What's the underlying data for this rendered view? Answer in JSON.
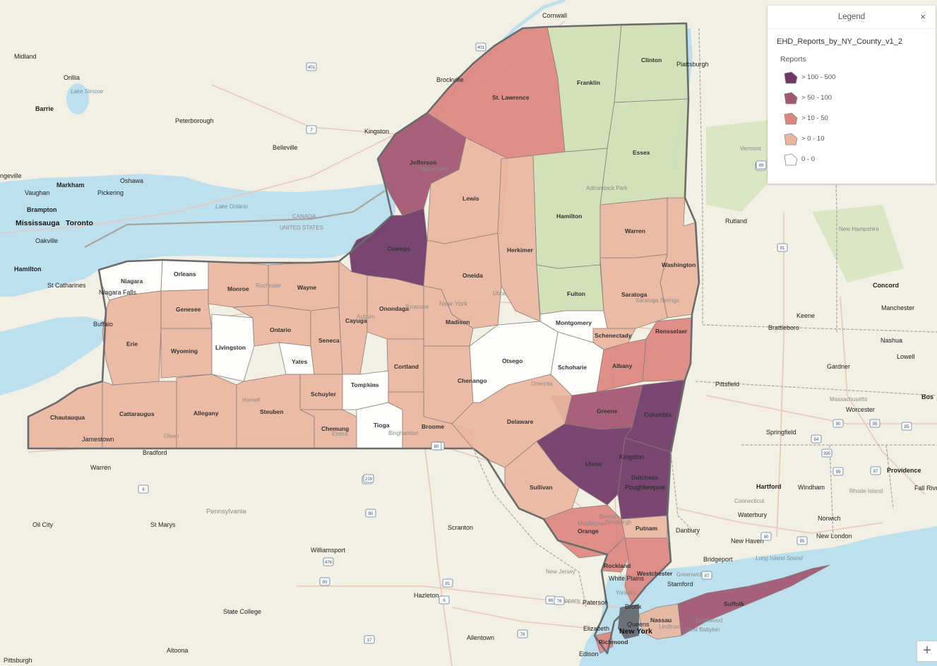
{
  "legend": {
    "title": "Legend",
    "close_glyph": "×",
    "layer_name": "EHD_Reports_by_NY_County_v1_2",
    "field_name": "Reports",
    "classes": [
      {
        "label": "> 100 - 500",
        "color": "#6e3766"
      },
      {
        "label": "> 50 - 100",
        "color": "#a35572"
      },
      {
        "label": "> 10 - 50",
        "color": "#dd8580"
      },
      {
        "label": "> 0 - 10",
        "color": "#eab6a0"
      },
      {
        "label": "0 - 0",
        "color": "#ffffff"
      }
    ]
  },
  "zoom": {
    "zoom_in_glyph": "+"
  },
  "map": {
    "water_color": "#bde0ef",
    "land_color": "#f2f0e4",
    "forest_color": "#cfe0b4",
    "water_labels": {
      "lake_ontario": "Lake Ontario",
      "lake_simcoe": "Lake Simcoe",
      "long_island_sound": "Long Island Sound"
    },
    "boundary_labels": {
      "canada": "CANADA",
      "united_states": "UNITED STATES"
    },
    "state_labels": {
      "pennsylvania": "Pennsylvania",
      "new_jersey": "New Jersey",
      "connecticut": "Connecticut",
      "massachusetts": "Massachusetts",
      "vermont": "Vermont",
      "new_hampshire": "New Hampshire",
      "rhode_island": "Rhode Island",
      "new_york": "New York"
    },
    "counties": [
      {
        "name": "St. Lawrence",
        "fill": "#dd8580"
      },
      {
        "name": "Jefferson",
        "fill": "#a35572"
      },
      {
        "name": "Franklin",
        "fill": "#cfe0b4"
      },
      {
        "name": "Clinton",
        "fill": "#cfe0b4"
      },
      {
        "name": "Essex",
        "fill": "#cfe0b4"
      },
      {
        "name": "Hamilton",
        "fill": "#cfe0b4"
      },
      {
        "name": "Lewis",
        "fill": "#eab6a0"
      },
      {
        "name": "Herkimer",
        "fill": "#eab6a0"
      },
      {
        "name": "Oswego",
        "fill": "#6e3766"
      },
      {
        "name": "Oneida",
        "fill": "#eab6a0"
      },
      {
        "name": "Warren",
        "fill": "#eab6a0"
      },
      {
        "name": "Washington",
        "fill": "#eab6a0"
      },
      {
        "name": "Saratoga",
        "fill": "#eab6a0"
      },
      {
        "name": "Fulton",
        "fill": "#cfe0b4"
      },
      {
        "name": "Niagara",
        "fill": "#ffffff"
      },
      {
        "name": "Orleans",
        "fill": "#ffffff"
      },
      {
        "name": "Monroe",
        "fill": "#eab6a0"
      },
      {
        "name": "Wayne",
        "fill": "#eab6a0"
      },
      {
        "name": "Genesee",
        "fill": "#eab6a0"
      },
      {
        "name": "Erie",
        "fill": "#eab6a0"
      },
      {
        "name": "Wyoming",
        "fill": "#eab6a0"
      },
      {
        "name": "Livingston",
        "fill": "#ffffff"
      },
      {
        "name": "Ontario",
        "fill": "#eab6a0"
      },
      {
        "name": "Yates",
        "fill": "#ffffff"
      },
      {
        "name": "Seneca",
        "fill": "#eab6a0"
      },
      {
        "name": "Cayuga",
        "fill": "#eab6a0"
      },
      {
        "name": "Onondaga",
        "fill": "#eab6a0"
      },
      {
        "name": "Madison",
        "fill": "#eab6a0"
      },
      {
        "name": "Cortland",
        "fill": "#eab6a0"
      },
      {
        "name": "Chenango",
        "fill": "#eab6a0"
      },
      {
        "name": "Otsego",
        "fill": "#ffffff"
      },
      {
        "name": "Montgomery",
        "fill": "#ffffff"
      },
      {
        "name": "Schenectady",
        "fill": "#eab6a0"
      },
      {
        "name": "Schoharie",
        "fill": "#ffffff"
      },
      {
        "name": "Albany",
        "fill": "#dd8580"
      },
      {
        "name": "Rensselaer",
        "fill": "#dd8580"
      },
      {
        "name": "Greene",
        "fill": "#a35572"
      },
      {
        "name": "Columbia",
        "fill": "#6e3766"
      },
      {
        "name": "Chautauqua",
        "fill": "#eab6a0"
      },
      {
        "name": "Cattaraugus",
        "fill": "#eab6a0"
      },
      {
        "name": "Allegany",
        "fill": "#eab6a0"
      },
      {
        "name": "Steuben",
        "fill": "#eab6a0"
      },
      {
        "name": "Schuyler",
        "fill": "#eab6a0"
      },
      {
        "name": "Chemung",
        "fill": "#eab6a0"
      },
      {
        "name": "Tompkins",
        "fill": "#ffffff"
      },
      {
        "name": "Tioga",
        "fill": "#ffffff"
      },
      {
        "name": "Broome",
        "fill": "#eab6a0"
      },
      {
        "name": "Delaware",
        "fill": "#eab6a0"
      },
      {
        "name": "Ulster",
        "fill": "#6e3766"
      },
      {
        "name": "Dutchess",
        "fill": "#6e3766"
      },
      {
        "name": "Sullivan",
        "fill": "#eab6a0"
      },
      {
        "name": "Orange",
        "fill": "#dd8580"
      },
      {
        "name": "Putnam",
        "fill": "#eab6a0"
      },
      {
        "name": "Rockland",
        "fill": "#dd8580"
      },
      {
        "name": "Westchester",
        "fill": "#dd8580"
      },
      {
        "name": "Nassau",
        "fill": "#eab6a0"
      },
      {
        "name": "Suffolk",
        "fill": "#a35572"
      },
      {
        "name": "Richmond",
        "fill": "#dd8580"
      }
    ],
    "places": {
      "cornwall": "Cornwall",
      "midland": "Midland",
      "orillia": "Orillia",
      "barrie": "Barrie",
      "peterborough": "Peterborough",
      "kingston": "Kingston",
      "belleville": "Belleville",
      "brockville": "Brockville",
      "plattsburgh": "Plattsburgh",
      "ngeville": "ngeville",
      "markham": "Markham",
      "vaughan": "Vaughan",
      "oshawa": "Oshawa",
      "pickering": "Pickering",
      "brampton": "Brampton",
      "mississauga": "Mississauga",
      "toronto": "Toronto",
      "oakville": "Oakville",
      "hamilton_on": "Hamilton",
      "st_catharines": "St Catharines",
      "niagara_falls": "Niagara Falls",
      "buffalo": "Buffalo",
      "watertown": "Watertown",
      "rochester": "Rochester",
      "syracuse": "Syracuse",
      "utica": "Utica",
      "auburn": "Auburn",
      "rutland": "Rutland",
      "keene": "Keene",
      "concord": "Concord",
      "manchester": "Manchester",
      "brattleboro": "Brattleboro",
      "nashua": "Nashua",
      "lowell": "Lowell",
      "gardner": "Gardner",
      "pittsfield": "Pittsfield",
      "worcester": "Worcester",
      "bos": "Bos",
      "springfield": "Springfield",
      "providence": "Providence",
      "fall_rive": "Fall Rive",
      "hartford": "Hartford",
      "windham": "Windham",
      "norwich": "Norwich",
      "new_london": "New London",
      "waterbury": "Waterbury",
      "new_haven": "New Haven",
      "bridgeport": "Bridgeport",
      "danbury": "Danbury",
      "stamford": "Stamford",
      "greenwich": "Greenwich",
      "white_plains": "White Plains",
      "yonkers": "Yonkers",
      "bronx": "Bronx",
      "paterson": "Paterson",
      "parsippany": "Parsippany",
      "elizabeth": "Elizabeth",
      "new_york": "New York",
      "queens": "Queens",
      "edison": "Edison",
      "allentown": "Allentown",
      "hazleton": "Hazleton",
      "scranton": "Scranton",
      "williamsport": "Williamsport",
      "state_college": "State College",
      "altoona": "Altoona",
      "pittsburgh": "Pittsburgh",
      "oil_city": "Oil City",
      "st_marys": "St Marys",
      "warren_pa": "Warren",
      "bradford": "Bradford",
      "jamestown": "Jamestown",
      "olean": "Olean",
      "hornell": "Hornell",
      "elmira": "Elmira",
      "ithaca": "Ithaca",
      "binghamton": "Binghamton",
      "oneonta": "Oneonta",
      "kingston_ny": "Kingston",
      "poughkeepsie": "Poughkeepsie",
      "middletown": "Middletown",
      "newburgh": "Newburgh",
      "beacon": "Beacon",
      "levittown": "Levittown",
      "brentwood": "Brentwood",
      "west_babylon": "West Babylon",
      "adirondack": "Adirondack Park",
      "glens_falls": "Saratoga Springs"
    },
    "shields": [
      "401",
      "7",
      "401",
      "87",
      "89",
      "91",
      "90",
      "84",
      "95",
      "81",
      "88",
      "90",
      "90",
      "86",
      "17",
      "6",
      "219",
      "6",
      "80",
      "476",
      "81",
      "80",
      "78",
      "76",
      "87",
      "95",
      "95",
      "87",
      "95",
      "395"
    ]
  }
}
